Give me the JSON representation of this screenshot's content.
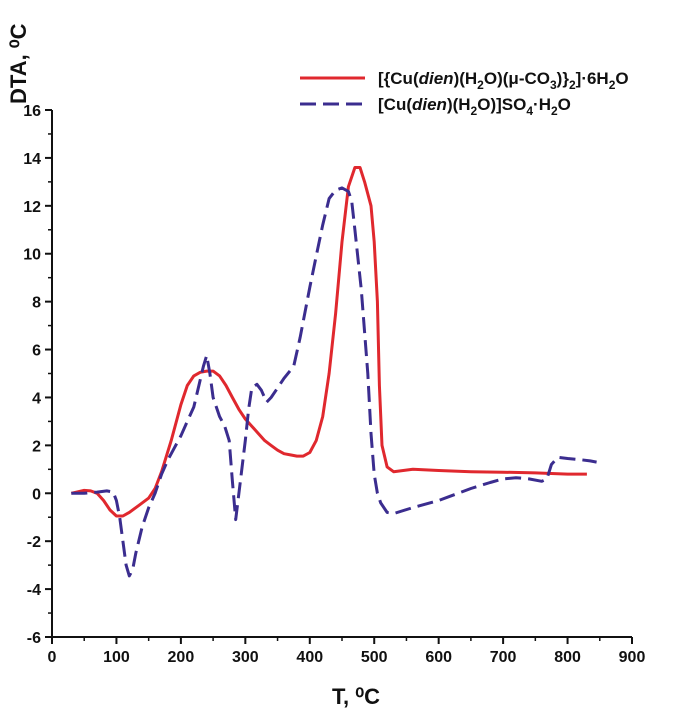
{
  "chart_data": {
    "type": "line",
    "xlabel": "T, ⁰C",
    "ylabel": "DTA, ⁰C",
    "xlim": [
      0,
      900
    ],
    "ylim": [
      -6,
      16
    ],
    "x_ticks": [
      0,
      100,
      200,
      300,
      400,
      500,
      600,
      700,
      800,
      900
    ],
    "y_ticks": [
      -6,
      -4,
      -2,
      0,
      2,
      4,
      6,
      8,
      10,
      12,
      14,
      16
    ],
    "grid": false,
    "legend_position": "top-right",
    "series": [
      {
        "name": "[{Cu(dien)(H2O)(μ-CO3)}2]·6H2O",
        "color": "#e0282e",
        "style": "solid",
        "points": [
          [
            30,
            0.0
          ],
          [
            50,
            0.12
          ],
          [
            60,
            0.1
          ],
          [
            70,
            0.0
          ],
          [
            80,
            -0.3
          ],
          [
            90,
            -0.7
          ],
          [
            100,
            -0.95
          ],
          [
            110,
            -0.95
          ],
          [
            120,
            -0.8
          ],
          [
            135,
            -0.5
          ],
          [
            150,
            -0.2
          ],
          [
            160,
            0.2
          ],
          [
            170,
            0.9
          ],
          [
            185,
            2.2
          ],
          [
            200,
            3.7
          ],
          [
            210,
            4.5
          ],
          [
            220,
            4.9
          ],
          [
            230,
            5.05
          ],
          [
            240,
            5.1
          ],
          [
            250,
            5.1
          ],
          [
            260,
            4.9
          ],
          [
            270,
            4.5
          ],
          [
            280,
            4.0
          ],
          [
            290,
            3.5
          ],
          [
            300,
            3.1
          ],
          [
            310,
            2.8
          ],
          [
            320,
            2.5
          ],
          [
            330,
            2.2
          ],
          [
            340,
            2.0
          ],
          [
            350,
            1.8
          ],
          [
            360,
            1.65
          ],
          [
            370,
            1.6
          ],
          [
            380,
            1.55
          ],
          [
            390,
            1.55
          ],
          [
            400,
            1.7
          ],
          [
            410,
            2.2
          ],
          [
            420,
            3.2
          ],
          [
            430,
            5.0
          ],
          [
            440,
            7.5
          ],
          [
            450,
            10.5
          ],
          [
            460,
            12.8
          ],
          [
            470,
            13.6
          ],
          [
            478,
            13.6
          ],
          [
            485,
            13.0
          ],
          [
            495,
            12.0
          ],
          [
            500,
            10.5
          ],
          [
            505,
            8.0
          ],
          [
            508,
            4.5
          ],
          [
            512,
            2.0
          ],
          [
            520,
            1.1
          ],
          [
            530,
            0.9
          ],
          [
            545,
            0.95
          ],
          [
            560,
            1.0
          ],
          [
            600,
            0.95
          ],
          [
            650,
            0.9
          ],
          [
            700,
            0.88
          ],
          [
            750,
            0.85
          ],
          [
            800,
            0.8
          ],
          [
            830,
            0.8
          ]
        ]
      },
      {
        "name": "[Cu(dien)(H2O)]SO4·H2O",
        "color": "#3b2d8f",
        "style": "dashed",
        "points": [
          [
            30,
            0.0
          ],
          [
            50,
            0.0
          ],
          [
            70,
            0.05
          ],
          [
            85,
            0.1
          ],
          [
            95,
            0.05
          ],
          [
            100,
            -0.3
          ],
          [
            105,
            -1.0
          ],
          [
            110,
            -2.0
          ],
          [
            115,
            -3.0
          ],
          [
            120,
            -3.45
          ],
          [
            125,
            -3.2
          ],
          [
            130,
            -2.5
          ],
          [
            140,
            -1.4
          ],
          [
            150,
            -0.6
          ],
          [
            160,
            0.0
          ],
          [
            170,
            0.8
          ],
          [
            180,
            1.4
          ],
          [
            190,
            1.9
          ],
          [
            200,
            2.4
          ],
          [
            210,
            3.0
          ],
          [
            220,
            3.6
          ],
          [
            228,
            4.5
          ],
          [
            235,
            5.3
          ],
          [
            240,
            5.75
          ],
          [
            245,
            5.0
          ],
          [
            250,
            4.0
          ],
          [
            260,
            3.2
          ],
          [
            268,
            2.8
          ],
          [
            275,
            2.2
          ],
          [
            280,
            0.5
          ],
          [
            285,
            -1.1
          ],
          [
            290,
            0.0
          ],
          [
            300,
            2.2
          ],
          [
            305,
            3.5
          ],
          [
            310,
            4.4
          ],
          [
            318,
            4.55
          ],
          [
            325,
            4.3
          ],
          [
            333,
            3.8
          ],
          [
            340,
            4.0
          ],
          [
            350,
            4.4
          ],
          [
            360,
            4.8
          ],
          [
            375,
            5.3
          ],
          [
            385,
            6.5
          ],
          [
            400,
            8.6
          ],
          [
            410,
            9.9
          ],
          [
            420,
            11.2
          ],
          [
            430,
            12.3
          ],
          [
            440,
            12.65
          ],
          [
            450,
            12.75
          ],
          [
            460,
            12.6
          ],
          [
            465,
            12.2
          ],
          [
            470,
            11.0
          ],
          [
            480,
            8.5
          ],
          [
            490,
            5.0
          ],
          [
            495,
            2.5
          ],
          [
            500,
            0.8
          ],
          [
            505,
            0.0
          ],
          [
            510,
            -0.4
          ],
          [
            520,
            -0.8
          ],
          [
            530,
            -0.85
          ],
          [
            560,
            -0.6
          ],
          [
            600,
            -0.3
          ],
          [
            620,
            -0.1
          ],
          [
            650,
            0.2
          ],
          [
            680,
            0.45
          ],
          [
            700,
            0.6
          ],
          [
            720,
            0.65
          ],
          [
            740,
            0.6
          ],
          [
            760,
            0.5
          ],
          [
            768,
            0.6
          ],
          [
            775,
            1.2
          ],
          [
            785,
            1.5
          ],
          [
            800,
            1.45
          ],
          [
            820,
            1.4
          ],
          [
            835,
            1.35
          ],
          [
            845,
            1.3
          ]
        ]
      }
    ]
  }
}
